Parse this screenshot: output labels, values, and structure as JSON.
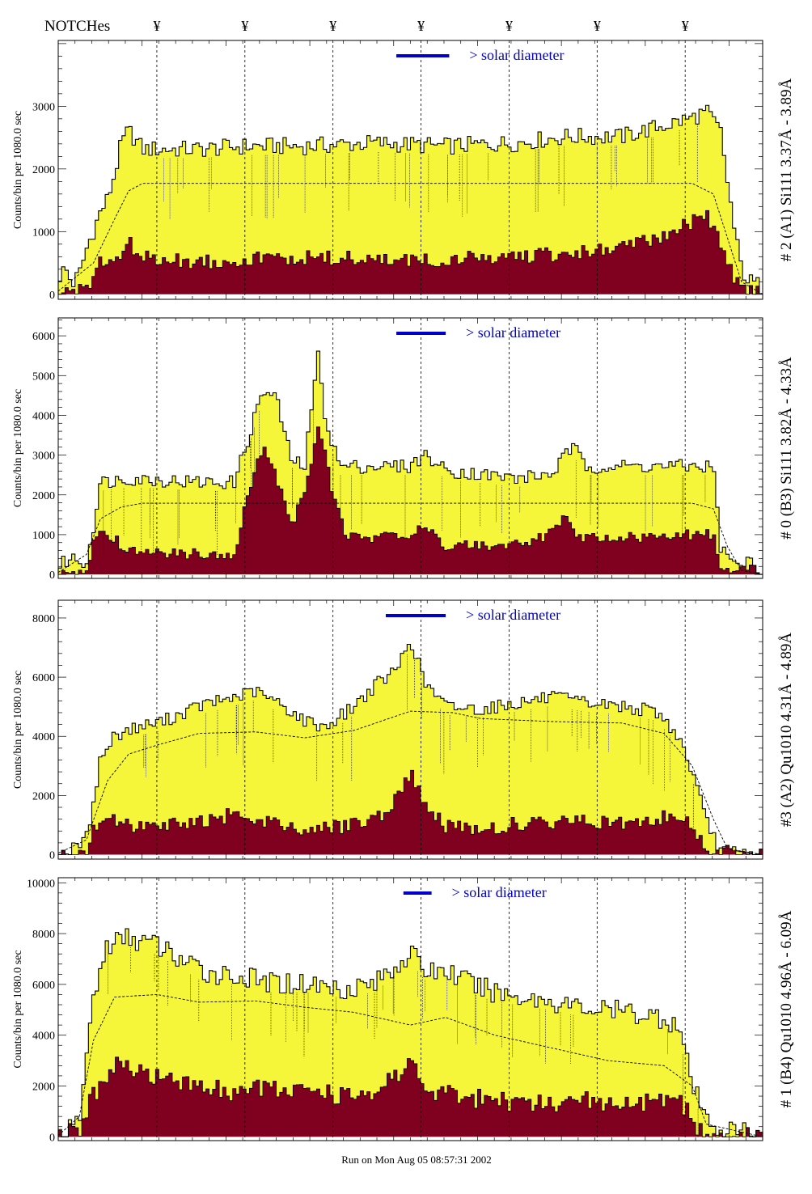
{
  "header": {
    "notches_label": "NOTCHes",
    "notch_symbol": "¥"
  },
  "footer": {
    "run_text": "Run on Mon Aug 05 08:57:31 2002"
  },
  "colors": {
    "fill_total": "#f5f53a",
    "fill_peaks": "#800020",
    "line": "#000000",
    "annotation": "#0000cc"
  },
  "chart_data": [
    {
      "type": "area",
      "right_label": "# 2 (A1) Si111  3.37Å - 3.89Å",
      "ylabel": "Counts/bin per   1080.0 sec",
      "annotation": "> solar diameter",
      "ylim": [
        -80,
        4050
      ],
      "yticks": [
        0,
        1000,
        2000,
        3000
      ],
      "notch_positions": [
        0.14,
        0.265,
        0.39,
        0.515,
        0.64,
        0.765,
        0.89
      ],
      "bar_x": [
        0.48,
        0.555
      ],
      "total_profile": [
        [
          0,
          250
        ],
        [
          0.01,
          400
        ],
        [
          0.02,
          150
        ],
        [
          0.03,
          300
        ],
        [
          0.04,
          700
        ],
        [
          0.05,
          1000
        ],
        [
          0.06,
          1300
        ],
        [
          0.07,
          1500
        ],
        [
          0.08,
          1900
        ],
        [
          0.09,
          2400
        ],
        [
          0.1,
          2600
        ],
        [
          0.12,
          2300
        ],
        [
          0.2,
          2300
        ],
        [
          0.27,
          2350
        ],
        [
          0.35,
          2350
        ],
        [
          0.45,
          2400
        ],
        [
          0.55,
          2350
        ],
        [
          0.65,
          2400
        ],
        [
          0.72,
          2500
        ],
        [
          0.8,
          2500
        ],
        [
          0.85,
          2650
        ],
        [
          0.9,
          2800
        ],
        [
          0.92,
          2900
        ],
        [
          0.94,
          2600
        ],
        [
          0.95,
          1800
        ],
        [
          0.96,
          1000
        ],
        [
          0.97,
          400
        ],
        [
          0.98,
          200
        ],
        [
          1.0,
          100
        ]
      ],
      "peak_profile": [
        [
          0,
          0
        ],
        [
          0.02,
          30
        ],
        [
          0.04,
          0
        ],
        [
          0.05,
          300
        ],
        [
          0.06,
          550
        ],
        [
          0.07,
          400
        ],
        [
          0.1,
          800
        ],
        [
          0.12,
          550
        ],
        [
          0.2,
          500
        ],
        [
          0.3,
          550
        ],
        [
          0.4,
          550
        ],
        [
          0.5,
          500
        ],
        [
          0.6,
          550
        ],
        [
          0.7,
          600
        ],
        [
          0.8,
          700
        ],
        [
          0.85,
          900
        ],
        [
          0.9,
          1100
        ],
        [
          0.92,
          1300
        ],
        [
          0.94,
          800
        ],
        [
          0.96,
          200
        ],
        [
          0.97,
          50
        ],
        [
          1.0,
          0
        ]
      ],
      "dashed_profile": [
        [
          0,
          50
        ],
        [
          0.05,
          500
        ],
        [
          0.08,
          1200
        ],
        [
          0.1,
          1650
        ],
        [
          0.12,
          1770
        ],
        [
          0.5,
          1770
        ],
        [
          0.9,
          1770
        ],
        [
          0.93,
          1600
        ],
        [
          0.95,
          900
        ],
        [
          0.97,
          200
        ],
        [
          1.0,
          0
        ]
      ],
      "noise_total": 280,
      "noise_peak": 250
    },
    {
      "type": "area",
      "right_label": "# 0 (B3) Si111  3.82Å - 4.33Å",
      "ylabel": "Counts/bin per   1080.0 sec",
      "annotation": "> solar diameter",
      "ylim": [
        -100,
        6450
      ],
      "yticks": [
        0,
        1000,
        2000,
        3000,
        4000,
        5000,
        6000
      ],
      "notch_positions": [
        0.14,
        0.265,
        0.39,
        0.515,
        0.64,
        0.765,
        0.89
      ],
      "bar_x": [
        0.48,
        0.55
      ],
      "total_profile": [
        [
          0,
          200
        ],
        [
          0.02,
          400
        ],
        [
          0.04,
          250
        ],
        [
          0.05,
          1200
        ],
        [
          0.06,
          2300
        ],
        [
          0.1,
          2400
        ],
        [
          0.2,
          2300
        ],
        [
          0.25,
          2300
        ],
        [
          0.27,
          3400
        ],
        [
          0.29,
          4600
        ],
        [
          0.31,
          4400
        ],
        [
          0.33,
          2900
        ],
        [
          0.35,
          2700
        ],
        [
          0.36,
          4200
        ],
        [
          0.37,
          5600
        ],
        [
          0.38,
          3800
        ],
        [
          0.4,
          2700
        ],
        [
          0.5,
          2700
        ],
        [
          0.52,
          3000
        ],
        [
          0.55,
          2600
        ],
        [
          0.65,
          2400
        ],
        [
          0.7,
          2500
        ],
        [
          0.73,
          3200
        ],
        [
          0.75,
          2700
        ],
        [
          0.85,
          2700
        ],
        [
          0.93,
          2700
        ],
        [
          0.94,
          700
        ],
        [
          0.96,
          200
        ],
        [
          0.98,
          300
        ],
        [
          1.0,
          100
        ]
      ],
      "peak_profile": [
        [
          0,
          0
        ],
        [
          0.02,
          50
        ],
        [
          0.04,
          0
        ],
        [
          0.05,
          800
        ],
        [
          0.06,
          1100
        ],
        [
          0.1,
          600
        ],
        [
          0.15,
          500
        ],
        [
          0.25,
          500
        ],
        [
          0.27,
          2000
        ],
        [
          0.29,
          3200
        ],
        [
          0.31,
          2400
        ],
        [
          0.33,
          1200
        ],
        [
          0.35,
          2000
        ],
        [
          0.37,
          3800
        ],
        [
          0.39,
          2000
        ],
        [
          0.41,
          900
        ],
        [
          0.5,
          900
        ],
        [
          0.52,
          1300
        ],
        [
          0.55,
          700
        ],
        [
          0.65,
          700
        ],
        [
          0.7,
          1000
        ],
        [
          0.72,
          1500
        ],
        [
          0.74,
          900
        ],
        [
          0.85,
          900
        ],
        [
          0.93,
          1000
        ],
        [
          0.94,
          200
        ],
        [
          0.96,
          0
        ],
        [
          0.98,
          150
        ],
        [
          1.0,
          0
        ]
      ],
      "dashed_profile": [
        [
          0,
          50
        ],
        [
          0.04,
          500
        ],
        [
          0.06,
          1400
        ],
        [
          0.09,
          1700
        ],
        [
          0.12,
          1790
        ],
        [
          0.5,
          1790
        ],
        [
          0.9,
          1790
        ],
        [
          0.93,
          1650
        ],
        [
          0.95,
          700
        ],
        [
          0.97,
          100
        ],
        [
          1.0,
          0
        ]
      ],
      "noise_total": 350,
      "noise_peak": 280
    },
    {
      "type": "area",
      "right_label": "#3 (A2) Qu1010  4.31Å - 4.89Å",
      "ylabel": "Counts/bin per   1080.0 sec",
      "annotation": "> solar diameter",
      "ylim": [
        -150,
        8600
      ],
      "yticks": [
        0,
        2000,
        4000,
        6000,
        8000
      ],
      "notch_positions": [
        0.14,
        0.265,
        0.39,
        0.515,
        0.64,
        0.765,
        0.89
      ],
      "bar_x": [
        0.465,
        0.55
      ],
      "total_profile": [
        [
          0,
          0
        ],
        [
          0.02,
          150
        ],
        [
          0.04,
          500
        ],
        [
          0.05,
          1800
        ],
        [
          0.06,
          3200
        ],
        [
          0.08,
          4000
        ],
        [
          0.1,
          4200
        ],
        [
          0.15,
          4500
        ],
        [
          0.2,
          5000
        ],
        [
          0.25,
          5300
        ],
        [
          0.28,
          5500
        ],
        [
          0.32,
          5000
        ],
        [
          0.35,
          4500
        ],
        [
          0.38,
          4300
        ],
        [
          0.42,
          5000
        ],
        [
          0.45,
          5700
        ],
        [
          0.48,
          6200
        ],
        [
          0.5,
          7300
        ],
        [
          0.52,
          5800
        ],
        [
          0.55,
          5000
        ],
        [
          0.6,
          4900
        ],
        [
          0.65,
          5100
        ],
        [
          0.7,
          5300
        ],
        [
          0.75,
          5100
        ],
        [
          0.8,
          5000
        ],
        [
          0.85,
          4800
        ],
        [
          0.88,
          4000
        ],
        [
          0.9,
          2800
        ],
        [
          0.92,
          1100
        ],
        [
          0.94,
          150
        ],
        [
          0.96,
          50
        ],
        [
          1.0,
          0
        ]
      ],
      "peak_profile": [
        [
          0,
          0
        ],
        [
          0.04,
          0
        ],
        [
          0.05,
          700
        ],
        [
          0.07,
          1200
        ],
        [
          0.1,
          900
        ],
        [
          0.15,
          1000
        ],
        [
          0.2,
          1100
        ],
        [
          0.25,
          1300
        ],
        [
          0.3,
          1100
        ],
        [
          0.35,
          800
        ],
        [
          0.4,
          900
        ],
        [
          0.45,
          1100
        ],
        [
          0.48,
          1800
        ],
        [
          0.5,
          2700
        ],
        [
          0.52,
          1800
        ],
        [
          0.55,
          900
        ],
        [
          0.6,
          800
        ],
        [
          0.65,
          1000
        ],
        [
          0.7,
          1000
        ],
        [
          0.75,
          1100
        ],
        [
          0.8,
          1000
        ],
        [
          0.85,
          1200
        ],
        [
          0.88,
          1300
        ],
        [
          0.9,
          900
        ],
        [
          0.92,
          300
        ],
        [
          0.93,
          0
        ],
        [
          1.0,
          0
        ]
      ],
      "dashed_profile": [
        [
          0,
          50
        ],
        [
          0.04,
          500
        ],
        [
          0.07,
          2500
        ],
        [
          0.1,
          3400
        ],
        [
          0.14,
          3700
        ],
        [
          0.2,
          4100
        ],
        [
          0.28,
          4150
        ],
        [
          0.35,
          3950
        ],
        [
          0.42,
          4200
        ],
        [
          0.5,
          4850
        ],
        [
          0.56,
          4800
        ],
        [
          0.6,
          4600
        ],
        [
          0.7,
          4500
        ],
        [
          0.8,
          4450
        ],
        [
          0.86,
          4100
        ],
        [
          0.9,
          3000
        ],
        [
          0.93,
          1200
        ],
        [
          0.95,
          200
        ],
        [
          1.0,
          0
        ]
      ],
      "noise_total": 450,
      "noise_peak": 500
    },
    {
      "type": "area",
      "right_label": "# 1 (B4) Qu1010 4.96Å - 6.09Å",
      "ylabel": "Counts/bin per   1080.0 sec",
      "annotation": "> solar diameter",
      "ylim": [
        -150,
        10200
      ],
      "yticks": [
        0,
        2000,
        4000,
        6000,
        8000,
        10000
      ],
      "notch_positions": [
        0.14,
        0.265,
        0.39,
        0.515,
        0.64,
        0.765,
        0.89
      ],
      "bar_x": [
        0.49,
        0.53
      ],
      "total_profile": [
        [
          0,
          100
        ],
        [
          0.02,
          200
        ],
        [
          0.03,
          600
        ],
        [
          0.04,
          3000
        ],
        [
          0.05,
          5500
        ],
        [
          0.07,
          7500
        ],
        [
          0.1,
          7800
        ],
        [
          0.14,
          7500
        ],
        [
          0.2,
          6500
        ],
        [
          0.25,
          6300
        ],
        [
          0.3,
          6000
        ],
        [
          0.35,
          6000
        ],
        [
          0.4,
          5800
        ],
        [
          0.45,
          6000
        ],
        [
          0.5,
          7200
        ],
        [
          0.52,
          6500
        ],
        [
          0.55,
          6500
        ],
        [
          0.6,
          5800
        ],
        [
          0.65,
          5500
        ],
        [
          0.7,
          5300
        ],
        [
          0.75,
          5000
        ],
        [
          0.8,
          4900
        ],
        [
          0.85,
          4700
        ],
        [
          0.88,
          4400
        ],
        [
          0.9,
          2000
        ],
        [
          0.92,
          600
        ],
        [
          0.95,
          150
        ],
        [
          0.98,
          200
        ],
        [
          1.0,
          100
        ]
      ],
      "peak_profile": [
        [
          0,
          0
        ],
        [
          0.03,
          100
        ],
        [
          0.04,
          1000
        ],
        [
          0.06,
          2000
        ],
        [
          0.08,
          2900
        ],
        [
          0.1,
          2600
        ],
        [
          0.15,
          2300
        ],
        [
          0.2,
          1900
        ],
        [
          0.25,
          1700
        ],
        [
          0.3,
          1800
        ],
        [
          0.35,
          1700
        ],
        [
          0.4,
          1500
        ],
        [
          0.45,
          1700
        ],
        [
          0.5,
          2800
        ],
        [
          0.52,
          1800
        ],
        [
          0.55,
          1600
        ],
        [
          0.6,
          1400
        ],
        [
          0.65,
          1200
        ],
        [
          0.7,
          1200
        ],
        [
          0.75,
          1300
        ],
        [
          0.8,
          1200
        ],
        [
          0.85,
          1300
        ],
        [
          0.88,
          1400
        ],
        [
          0.9,
          600
        ],
        [
          0.92,
          0
        ],
        [
          1.0,
          0
        ]
      ],
      "dashed_profile": [
        [
          0,
          50
        ],
        [
          0.03,
          800
        ],
        [
          0.05,
          3800
        ],
        [
          0.08,
          5500
        ],
        [
          0.14,
          5600
        ],
        [
          0.2,
          5300
        ],
        [
          0.28,
          5350
        ],
        [
          0.35,
          5100
        ],
        [
          0.42,
          4900
        ],
        [
          0.5,
          4400
        ],
        [
          0.55,
          4700
        ],
        [
          0.62,
          4000
        ],
        [
          0.7,
          3500
        ],
        [
          0.78,
          3000
        ],
        [
          0.86,
          2800
        ],
        [
          0.9,
          2000
        ],
        [
          0.92,
          500
        ],
        [
          1.0,
          0
        ]
      ],
      "noise_total": 900,
      "noise_peak": 800
    }
  ]
}
